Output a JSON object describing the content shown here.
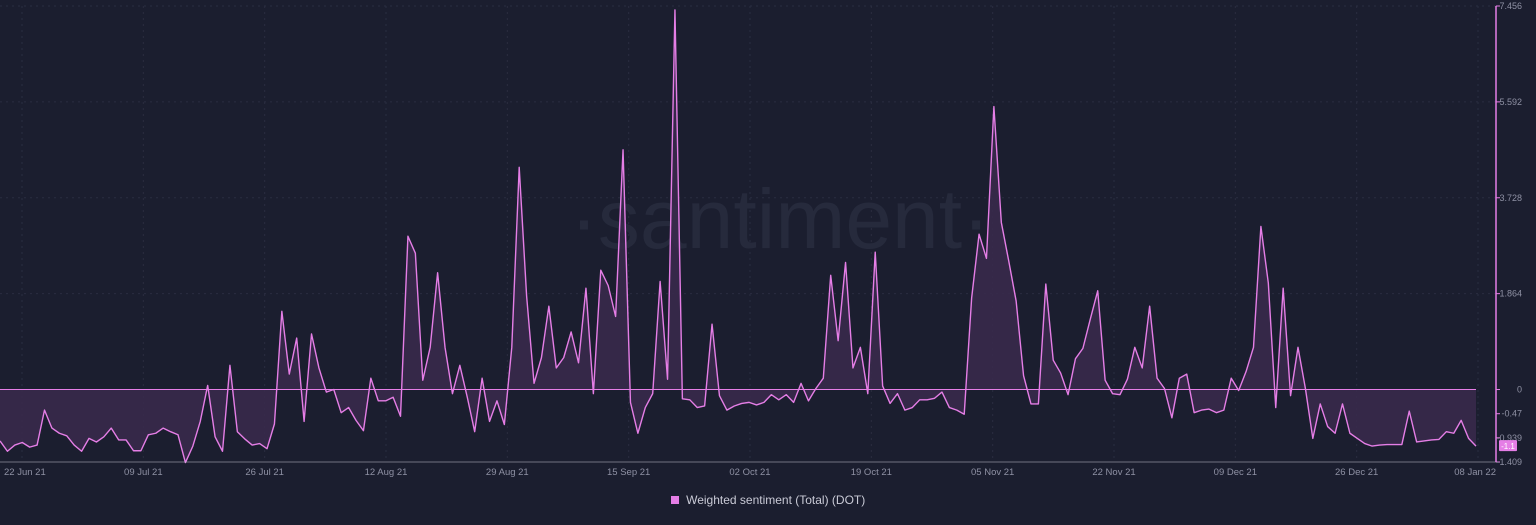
{
  "watermark": "·santiment·",
  "colors": {
    "background": "#1b1e2f",
    "series": "#e57ee6",
    "fill": "#3a2a4c",
    "grid": "#2a2d40",
    "axis_text": "#8f91a4",
    "axis_line": "#c8c8d6"
  },
  "chart_data": {
    "type": "area",
    "title": "",
    "xlabel": "",
    "ylabel": "",
    "ylim": [
      -1.409,
      7.456
    ],
    "y_ticks": [
      "7.456",
      "5.592",
      "3.728",
      "1.864",
      "0",
      "-0.47",
      "-0.939",
      "-1.409"
    ],
    "x_tick_labels": [
      "22 Jun 21",
      "09 Jul 21",
      "26 Jul 21",
      "12 Aug 21",
      "29 Aug 21",
      "15 Sep 21",
      "02 Oct 21",
      "19 Oct 21",
      "05 Nov 21",
      "22 Nov 21",
      "09 Dec 21",
      "26 Dec 21",
      "08 Jan 22"
    ],
    "last_value_label": "-1.1",
    "series": [
      {
        "name": "Weighted sentiment (Total) (DOT)",
        "values": [
          -1.0,
          -1.2,
          -1.08,
          -1.03,
          -1.12,
          -1.08,
          -0.4,
          -0.75,
          -0.85,
          -0.9,
          -1.08,
          -1.2,
          -0.95,
          -1.02,
          -0.92,
          -0.75,
          -0.98,
          -0.98,
          -1.19,
          -1.19,
          -0.88,
          -0.85,
          -0.75,
          -0.82,
          -0.88,
          -1.42,
          -1.1,
          -0.62,
          0.08,
          -0.92,
          -1.2,
          0.47,
          -0.82,
          -0.96,
          -1.08,
          -1.05,
          -1.15,
          -0.67,
          1.52,
          0.3,
          1.0,
          -0.62,
          1.08,
          0.42,
          -0.05,
          0.0,
          -0.45,
          -0.35,
          -0.6,
          -0.8,
          0.22,
          -0.22,
          -0.22,
          -0.15,
          -0.52,
          2.98,
          2.65,
          0.18,
          0.82,
          2.27,
          0.82,
          -0.08,
          0.47,
          -0.15,
          -0.82,
          0.22,
          -0.62,
          -0.22,
          -0.68,
          0.82,
          4.32,
          1.82,
          0.12,
          0.62,
          1.62,
          0.42,
          0.62,
          1.12,
          0.52,
          1.97,
          -0.08,
          2.32,
          2.02,
          1.42,
          4.66,
          -0.25,
          -0.85,
          -0.35,
          -0.08,
          2.1,
          0.2,
          7.38,
          -0.18,
          -0.2,
          -0.35,
          -0.32,
          1.27,
          -0.12,
          -0.4,
          -0.32,
          -0.27,
          -0.25,
          -0.3,
          -0.25,
          -0.1,
          -0.2,
          -0.1,
          -0.25,
          0.12,
          -0.22,
          0.02,
          0.22,
          2.22,
          0.95,
          2.47,
          0.42,
          0.82,
          -0.08,
          2.67,
          0.07,
          -0.27,
          -0.08,
          -0.4,
          -0.35,
          -0.2,
          -0.2,
          -0.17,
          -0.05,
          -0.35,
          -0.4,
          -0.48,
          1.78,
          3.02,
          2.55,
          5.5,
          3.25,
          2.5,
          1.72,
          0.27,
          -0.28,
          -0.28,
          2.05,
          0.57,
          0.32,
          -0.1,
          0.6,
          0.8,
          1.37,
          1.92,
          0.18,
          -0.08,
          -0.1,
          0.2,
          0.82,
          0.42,
          1.62,
          0.22,
          0.02,
          -0.55,
          0.22,
          0.3,
          -0.45,
          -0.4,
          -0.38,
          -0.45,
          -0.4,
          0.22,
          -0.02,
          0.35,
          0.82,
          3.17,
          2.07,
          -0.35,
          1.97,
          -0.12,
          0.82,
          0.02,
          -0.95,
          -0.28,
          -0.72,
          -0.85,
          -0.28,
          -0.85,
          -0.95,
          -1.05,
          -1.1,
          -1.08,
          -1.07,
          -1.07,
          -1.07,
          -0.42,
          -1.02,
          -1.0,
          -0.98,
          -0.97,
          -0.82,
          -0.85,
          -0.6,
          -0.95,
          -1.1
        ]
      }
    ]
  },
  "legend": {
    "label": "Weighted sentiment (Total) (DOT)"
  }
}
